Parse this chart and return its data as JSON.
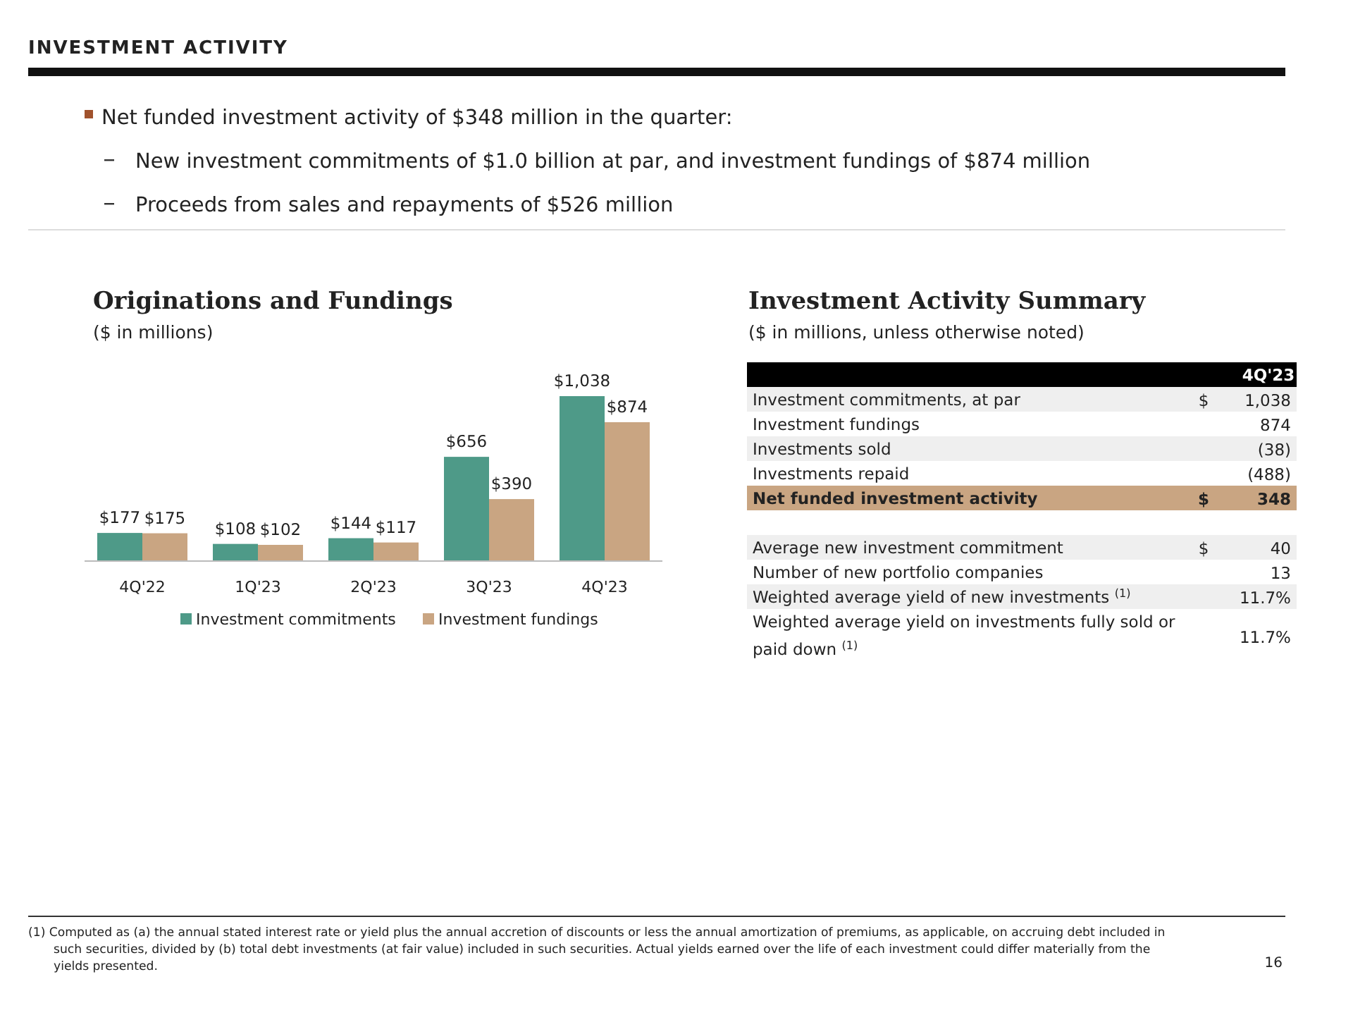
{
  "chart_data": [
    {
      "type": "other",
      "title": "INVESTMENT ACTIVITY",
      "annotations": [
        "Net funded investment activity of $348 million in the quarter:",
        "New investment commitments of $1.0 billion at par, and investment fundings of $874 million",
        "Proceeds from sales and repayments of $526 million"
      ]
    },
    {
      "type": "bar",
      "title": "Originations and Fundings",
      "subtitle": "($ in millions)",
      "categories": [
        "4Q'22",
        "1Q'23",
        "2Q'23",
        "3Q'23",
        "4Q'23"
      ],
      "legend": "bottom",
      "series": [
        {
          "name": "Investment commitments",
          "color": "#4e9a88",
          "values": [
            177,
            108,
            144,
            656,
            1038
          ],
          "value_labels": [
            "$177",
            "$108",
            "$144",
            "$656",
            "$1,038"
          ]
        },
        {
          "name": "Investment fundings",
          "color": "#c9a582",
          "values": [
            175,
            102,
            117,
            390,
            874
          ],
          "value_labels": [
            "$175",
            "$102",
            "$117",
            "$390",
            "$874"
          ]
        }
      ]
    },
    {
      "type": "other",
      "title": "Investment Activity Summary",
      "subtitle": "($ in millions, unless otherwise noted)",
      "categories": [
        null,
        "4Q'23"
      ],
      "y_categories": [
        "Investment commitments, at par",
        "Investment fundings",
        "Investments sold",
        "Investments repaid",
        "Net funded investment activity",
        null,
        "Average new investment commitment",
        "Number of new portfolio companies",
        "Weighted average yield of new investments $^{(1)}$",
        "Weighted average yield on investments fully sold or paid down $^{(1)}$"
      ],
      "cell_labels": [
        [
          "$",
          "1,038"
        ],
        [
          null,
          "874"
        ],
        [
          null,
          "(38)"
        ],
        [
          null,
          "(488)"
        ],
        [
          "$",
          "348"
        ],
        [
          null,
          null
        ],
        [
          "$",
          "40"
        ],
        [
          null,
          "13"
        ],
        [
          null,
          "11.7%"
        ],
        [
          null,
          "11.7%"
        ]
      ],
      "annotations": [
        "(1)  Computed as (a) the annual stated interest rate or yield plus the annual accretion of discounts or less the annual amortization of premiums, as applicable, on accruing debt included in such securities, divided by (b) total debt investments (at fair value) included in such securities. Actual yields earned over the life of each investment could differ materially from the yields presented.",
        "16"
      ]
    }
  ]
}
